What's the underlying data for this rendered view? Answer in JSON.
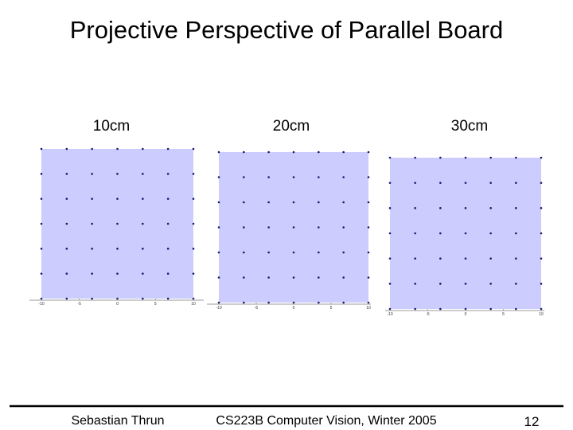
{
  "title": "Projective Perspective of Parallel Board",
  "panels": [
    {
      "label": "10cm",
      "ticks": [
        -10,
        -5,
        0,
        5,
        10
      ]
    },
    {
      "label": "20cm",
      "ticks": [
        -10,
        -5,
        0,
        5,
        10
      ]
    },
    {
      "label": "30cm",
      "ticks": [
        -10,
        -5,
        0,
        5,
        10
      ]
    }
  ],
  "footer": {
    "left": "Sebastian Thrun",
    "center": "CS223B Computer Vision, Winter 2005",
    "page": "12"
  }
}
